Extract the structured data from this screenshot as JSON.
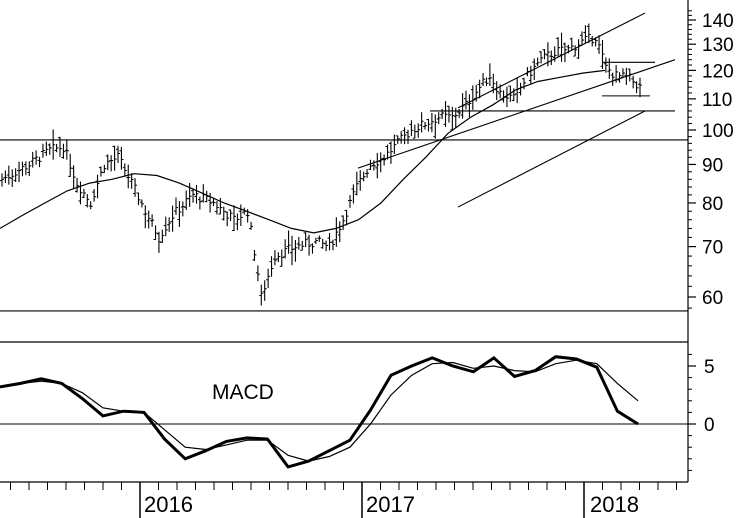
{
  "chart_data": [
    {
      "type": "ohlc",
      "y_scale": "log",
      "ylim": [
        56,
        145
      ],
      "y_ticks": [
        60,
        70,
        80,
        90,
        100,
        110,
        120,
        130,
        140
      ],
      "x_labels": [
        "2016",
        "2017",
        "2018"
      ],
      "grid": false,
      "ma_series": [
        {
          "role": "moving-average",
          "y": [
            74,
            77,
            80,
            83,
            85,
            86,
            87.5,
            87,
            85,
            82.5,
            80,
            78,
            76,
            74,
            73,
            74,
            76,
            80,
            86,
            92,
            99,
            104,
            108,
            113,
            116,
            117.5,
            119,
            120
          ]
        }
      ],
      "horizontal_lines": [
        97,
        57.5
      ],
      "trend_lines": [
        {
          "from": [
            0,
            97
          ],
          "to": [
            1,
            97
          ]
        },
        {
          "from": [
            0,
            57.5
          ],
          "to": [
            1,
            57.5
          ]
        }
      ]
    },
    {
      "type": "line",
      "label": "MACD",
      "zero_line": 0,
      "y_ticks": [
        5,
        0
      ],
      "series": [
        {
          "role": "macd",
          "values": [
            3.2,
            3.5,
            3.9,
            3.5,
            2.2,
            0.7,
            1.1,
            1.0,
            -1.3,
            -3.0,
            -2.3,
            -1.5,
            -1.2,
            -1.3,
            -3.7,
            -3.2,
            -2.3,
            -1.4,
            1.2,
            4.2,
            5.0,
            5.7,
            5.0,
            4.5,
            5.7,
            4.1,
            4.6,
            5.8,
            5.6,
            4.9,
            1.1,
            0.0
          ]
        },
        {
          "role": "signal",
          "values": [
            3.2,
            3.5,
            3.7,
            3.5,
            2.7,
            1.4,
            1.1,
            1.0,
            -0.5,
            -2.0,
            -2.2,
            -1.8,
            -1.4,
            -1.4,
            -2.7,
            -3.2,
            -2.8,
            -2.0,
            0.0,
            2.5,
            4.2,
            5.2,
            5.3,
            4.8,
            5.0,
            4.6,
            4.5,
            5.2,
            5.5,
            5.2,
            3.5,
            2.0
          ]
        }
      ]
    }
  ]
}
